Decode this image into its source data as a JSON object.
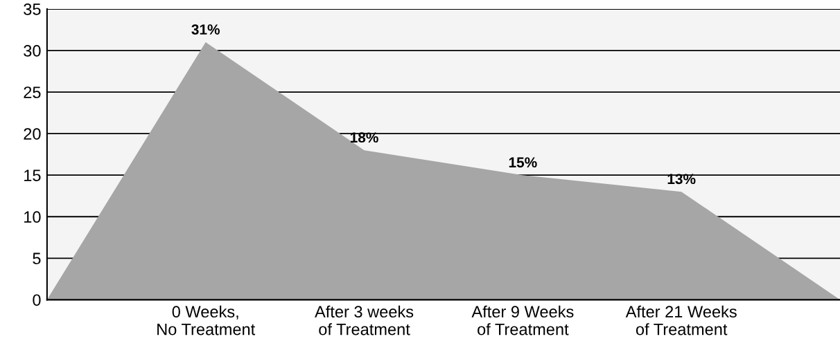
{
  "chart_data": {
    "type": "area",
    "categories": [
      null,
      "0 Weeks,\nNo Treatment",
      "After 3 weeks\nof Treatment",
      "After 9 Weeks\nof Treatment",
      "After 21 Weeks\nof Treatment",
      null
    ],
    "values": [
      0,
      31,
      18,
      15,
      13,
      0
    ],
    "value_labels": [
      null,
      "31%",
      "18%",
      "15%",
      "13%",
      null
    ],
    "color": "#a6a6a6",
    "ylim": [
      0,
      35
    ],
    "yticks": [
      0,
      5,
      10,
      15,
      20,
      25,
      30,
      35
    ],
    "grid": "y",
    "legend": false
  }
}
